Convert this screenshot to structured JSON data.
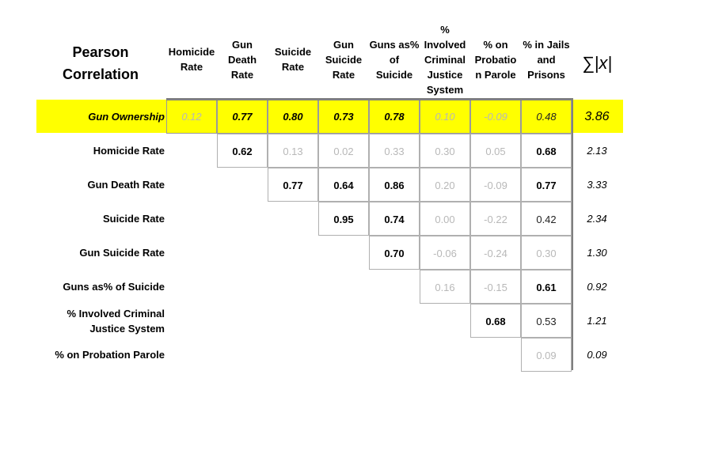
{
  "title": [
    "Pearson",
    "Correlation"
  ],
  "columns": [
    [
      "Homicide",
      "Rate"
    ],
    [
      "Gun",
      "Death",
      "Rate"
    ],
    [
      "Suicide",
      "Rate"
    ],
    [
      "Gun",
      "Suicide",
      "Rate"
    ],
    [
      "Guns as%",
      "of",
      "Suicide"
    ],
    [
      "%",
      "Involved",
      "Criminal",
      "Justice",
      "System"
    ],
    [
      "% on",
      "Probatio",
      "n Parole"
    ],
    [
      "% in Jails",
      "and",
      "Prisons"
    ]
  ],
  "sum_header": "∑|x|",
  "rows": [
    {
      "label": "Gun Ownership",
      "start": 0,
      "values": [
        "0.12",
        "0.77",
        "0.80",
        "0.73",
        "0.78",
        "0.10",
        "-0.09",
        "0.48"
      ],
      "strength": [
        "weak",
        "strong",
        "strong",
        "strong",
        "strong",
        "weak",
        "weak",
        "medium"
      ],
      "sum": "3.86"
    },
    {
      "label": "Homicide Rate",
      "start": 1,
      "values": [
        "0.62",
        "0.13",
        "0.02",
        "0.33",
        "0.30",
        "0.05",
        "0.68"
      ],
      "strength": [
        "strong",
        "weak",
        "weak",
        "weak",
        "weak",
        "weak",
        "strong"
      ],
      "sum": "2.13"
    },
    {
      "label": "Gun Death Rate",
      "start": 2,
      "values": [
        "0.77",
        "0.64",
        "0.86",
        "0.20",
        "-0.09",
        "0.77"
      ],
      "strength": [
        "strong",
        "strong",
        "strong",
        "weak",
        "weak",
        "strong"
      ],
      "sum": "3.33"
    },
    {
      "label": "Suicide Rate",
      "start": 3,
      "values": [
        "0.95",
        "0.74",
        "0.00",
        "-0.22",
        "0.42"
      ],
      "strength": [
        "strong",
        "strong",
        "weak",
        "weak",
        "medium"
      ],
      "sum": "2.34"
    },
    {
      "label": "Gun Suicide Rate",
      "start": 4,
      "values": [
        "0.70",
        "-0.06",
        "-0.24",
        "0.30"
      ],
      "strength": [
        "strong",
        "weak",
        "weak",
        "weak"
      ],
      "sum": "1.30"
    },
    {
      "label": "Guns as%  of Suicide",
      "start": 5,
      "values": [
        "0.16",
        "-0.15",
        "0.61"
      ],
      "strength": [
        "weak",
        "weak",
        "strong"
      ],
      "sum": "0.92"
    },
    {
      "label": "% Involved Criminal Justice System",
      "label_lines": [
        "% Involved Criminal",
        "Justice System"
      ],
      "start": 6,
      "values": [
        "0.68",
        "0.53"
      ],
      "strength": [
        "strong",
        "medium"
      ],
      "sum": "1.21"
    },
    {
      "label": "% on Probation Parole",
      "start": 7,
      "values": [
        "0.09"
      ],
      "strength": [
        "weak"
      ],
      "sum": "0.09"
    }
  ],
  "colors": {
    "highlight": "#ffff00",
    "weak": "#b8b8b8",
    "grid": "#b0b0b0"
  }
}
